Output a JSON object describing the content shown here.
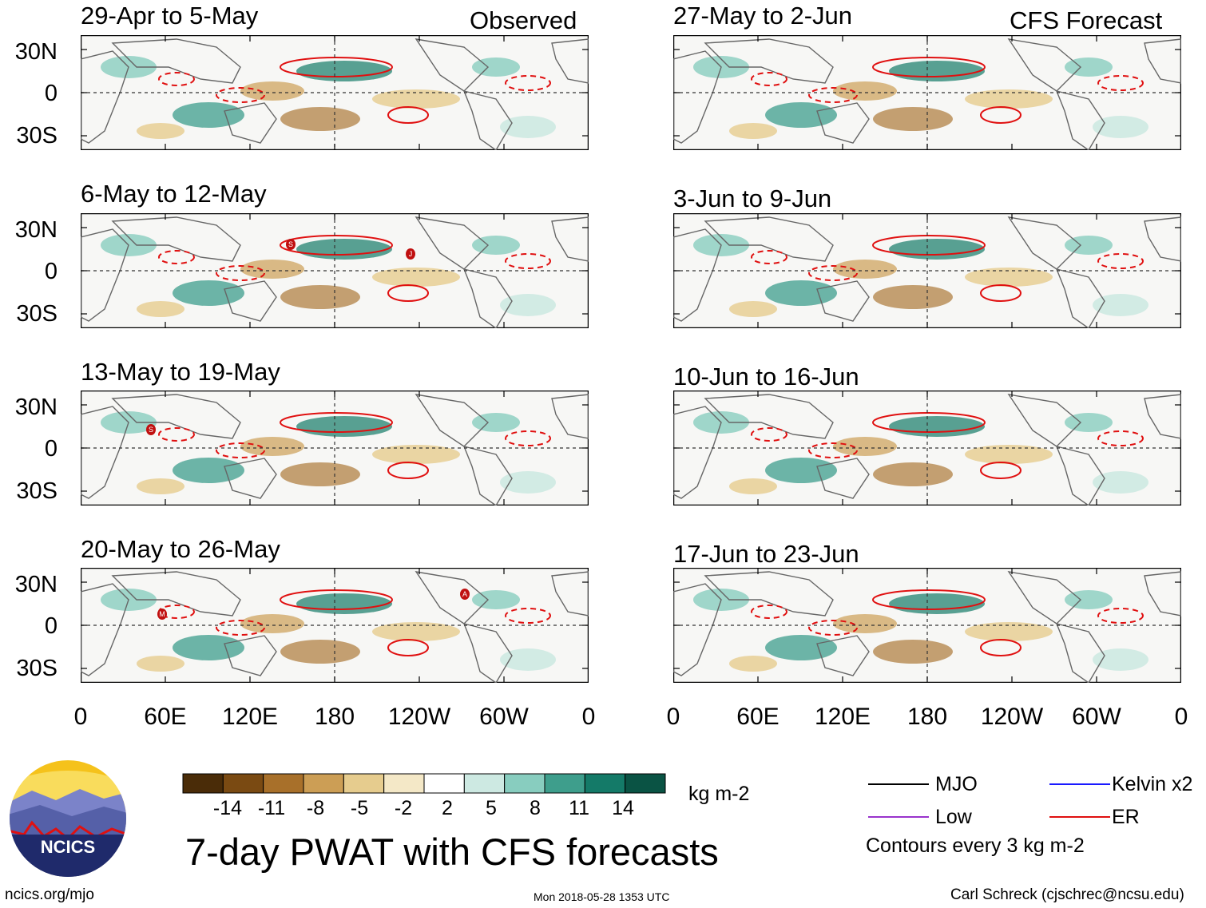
{
  "panels_observed": {
    "tag": "Observed",
    "titles": [
      "29-Apr to 5-May",
      "6-May to 12-May",
      "13-May to 19-May",
      "20-May to 26-May"
    ]
  },
  "panels_forecast": {
    "tag": "CFS Forecast",
    "titles": [
      "27-May to 2-Jun",
      "3-Jun to 9-Jun",
      "10-Jun to 16-Jun",
      "17-Jun to 23-Jun"
    ]
  },
  "lat_labels": [
    "30N",
    "0",
    "30S"
  ],
  "lon_labels": [
    "0",
    "60E",
    "120E",
    "180",
    "120W",
    "60W",
    "0"
  ],
  "storm_markers": {
    "panel2": [
      "S",
      "J"
    ],
    "panel3": [
      "S"
    ],
    "panel4": [
      "M",
      "A"
    ]
  },
  "colorbar": {
    "unit": "kg m-2",
    "ticks": [
      "-14",
      "-11",
      "-8",
      "-5",
      "-2",
      "2",
      "5",
      "8",
      "11",
      "14"
    ],
    "colors": [
      "#4a2c08",
      "#7a4a12",
      "#a8702a",
      "#cc9e55",
      "#e6cc8e",
      "#f4e8c7",
      "#ffffff",
      "#cde9e2",
      "#88cdbf",
      "#3e9e8c",
      "#147a68",
      "#0a5344"
    ]
  },
  "legend": {
    "mjo": "MJO",
    "kelvin": "Kelvin x2",
    "low": "Low",
    "er": "ER",
    "contour_note": "Contours every 3 kg m-2",
    "colors": {
      "mjo": "#000000",
      "kelvin": "#1a1aff",
      "low": "#9933cc",
      "er": "#e01010"
    }
  },
  "main_title": "7-day PWAT with CFS forecasts",
  "logo_text": "NCICS",
  "footer": {
    "left": "ncics.org/mjo",
    "center": "Mon 2018-05-28 1353 UTC",
    "right": "Carl Schreck (cjschrec@ncsu.edu)"
  }
}
